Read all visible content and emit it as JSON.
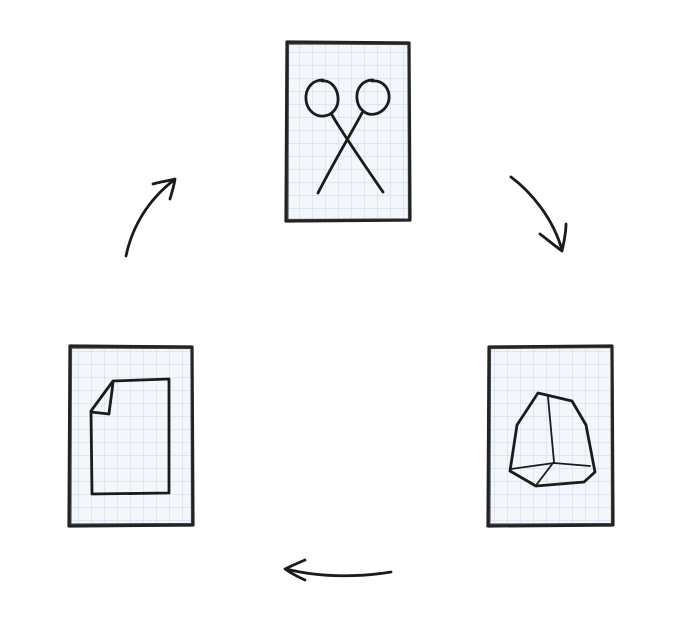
{
  "diagram": {
    "cards": [
      {
        "icon": "scissors-icon"
      },
      {
        "icon": "gem-icon"
      },
      {
        "icon": "document-icon"
      }
    ],
    "arrows": [
      {
        "from": "scissors-icon",
        "to": "gem-icon"
      },
      {
        "from": "gem-icon",
        "to": "document-icon"
      },
      {
        "from": "document-icon",
        "to": "scissors-icon"
      }
    ],
    "colors": {
      "ink": "#1b1b1b",
      "grid": "#c9d6ea",
      "card_fill": "#f3f6fb"
    }
  }
}
